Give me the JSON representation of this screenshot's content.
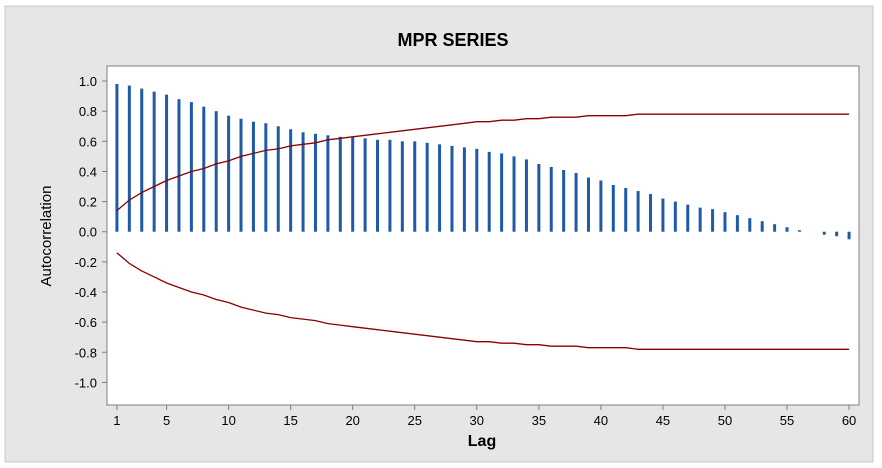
{
  "chart_data": {
    "type": "bar",
    "title": "MPR SERIES",
    "xlabel": "Lag",
    "ylabel": "Autocorrelation",
    "xlim": [
      0.2,
      60.8
    ],
    "ylim": [
      -1.15,
      1.1
    ],
    "grid": false,
    "x_ticks": [
      1,
      5,
      10,
      15,
      20,
      25,
      30,
      35,
      40,
      45,
      50,
      55,
      60
    ],
    "y_ticks": [
      1.0,
      0.8,
      0.6,
      0.4,
      0.2,
      0.0,
      -0.2,
      -0.4,
      -0.6,
      -0.8,
      -1.0
    ],
    "y_tick_labels": [
      "1.0",
      "0.8",
      "0.6",
      "0.4",
      "0.2",
      "0.0",
      "-0.2",
      "-0.4",
      "-0.6",
      "-0.8",
      "-1.0"
    ],
    "lags": [
      1,
      2,
      3,
      4,
      5,
      6,
      7,
      8,
      9,
      10,
      11,
      12,
      13,
      14,
      15,
      16,
      17,
      18,
      19,
      20,
      21,
      22,
      23,
      24,
      25,
      26,
      27,
      28,
      29,
      30,
      31,
      32,
      33,
      34,
      35,
      36,
      37,
      38,
      39,
      40,
      41,
      42,
      43,
      44,
      45,
      46,
      47,
      48,
      49,
      50,
      51,
      52,
      53,
      54,
      55,
      56,
      57,
      58,
      59,
      60
    ],
    "series": [
      {
        "kind": "autocorrelation",
        "values": [
          0.98,
          0.97,
          0.95,
          0.93,
          0.91,
          0.88,
          0.86,
          0.83,
          0.8,
          0.77,
          0.75,
          0.73,
          0.72,
          0.7,
          0.68,
          0.66,
          0.65,
          0.64,
          0.63,
          0.63,
          0.62,
          0.61,
          0.61,
          0.6,
          0.6,
          0.59,
          0.58,
          0.57,
          0.56,
          0.55,
          0.53,
          0.52,
          0.5,
          0.48,
          0.45,
          0.43,
          0.41,
          0.39,
          0.36,
          0.34,
          0.31,
          0.29,
          0.27,
          0.25,
          0.22,
          0.2,
          0.18,
          0.16,
          0.15,
          0.13,
          0.11,
          0.09,
          0.07,
          0.05,
          0.03,
          0.01,
          0.0,
          -0.02,
          -0.03,
          -0.05
        ]
      },
      {
        "kind": "upper-confidence-limit",
        "values": [
          0.14,
          0.21,
          0.26,
          0.3,
          0.34,
          0.37,
          0.4,
          0.42,
          0.45,
          0.47,
          0.5,
          0.52,
          0.54,
          0.55,
          0.57,
          0.58,
          0.59,
          0.61,
          0.62,
          0.63,
          0.64,
          0.65,
          0.66,
          0.67,
          0.68,
          0.69,
          0.7,
          0.71,
          0.72,
          0.73,
          0.73,
          0.74,
          0.74,
          0.75,
          0.75,
          0.76,
          0.76,
          0.76,
          0.77,
          0.77,
          0.77,
          0.77,
          0.78,
          0.78,
          0.78,
          0.78,
          0.78,
          0.78,
          0.78,
          0.78,
          0.78,
          0.78,
          0.78,
          0.78,
          0.78,
          0.78,
          0.78,
          0.78,
          0.78,
          0.78
        ]
      },
      {
        "kind": "lower-confidence-limit",
        "values": [
          -0.14,
          -0.21,
          -0.26,
          -0.3,
          -0.34,
          -0.37,
          -0.4,
          -0.42,
          -0.45,
          -0.47,
          -0.5,
          -0.52,
          -0.54,
          -0.55,
          -0.57,
          -0.58,
          -0.59,
          -0.61,
          -0.62,
          -0.63,
          -0.64,
          -0.65,
          -0.66,
          -0.67,
          -0.68,
          -0.69,
          -0.7,
          -0.71,
          -0.72,
          -0.73,
          -0.73,
          -0.74,
          -0.74,
          -0.75,
          -0.75,
          -0.76,
          -0.76,
          -0.76,
          -0.77,
          -0.77,
          -0.77,
          -0.77,
          -0.78,
          -0.78,
          -0.78,
          -0.78,
          -0.78,
          -0.78,
          -0.78,
          -0.78,
          -0.78,
          -0.78,
          -0.78,
          -0.78,
          -0.78,
          -0.78,
          -0.78,
          -0.78,
          -0.78,
          -0.78
        ]
      }
    ],
    "colors": {
      "bars": "#1f5aa6",
      "confidence_limits": "#8b0000",
      "outer_background": "#e6e6e6",
      "plot_background": "#ffffff",
      "axis": "#7f7f7f"
    }
  }
}
